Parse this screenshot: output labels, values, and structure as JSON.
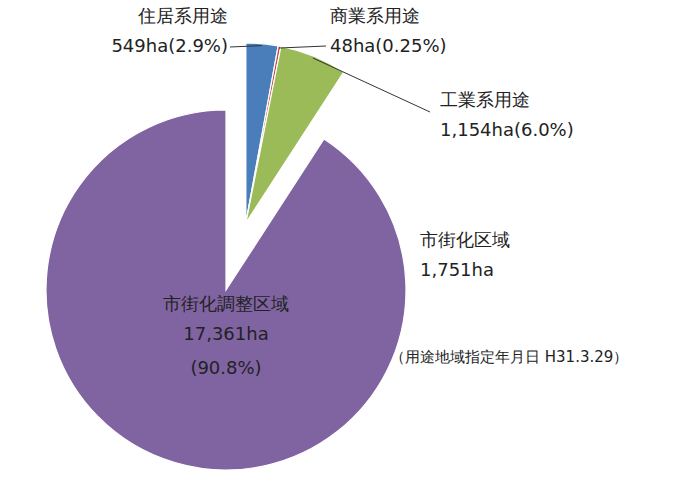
{
  "chart_data": {
    "type": "pie",
    "categories": [
      "住居系用途",
      "商業系用途",
      "工業系用途",
      "市街化調整区域"
    ],
    "values": [
      549,
      48,
      1154,
      17361
    ],
    "value_labels": [
      "549ha(2.9%)",
      "48ha(0.25%)",
      "1,154ha(6.0%)",
      "17,361ha\n(90.8%)"
    ],
    "colors": [
      "#4a7ebb",
      "#c0504d",
      "#9bbb59",
      "#8064a2"
    ],
    "data_labels": true,
    "annotations": [
      "市街化区域",
      "1,751ha",
      "（用途地域指定年月日 H31.3.29）"
    ]
  }
}
